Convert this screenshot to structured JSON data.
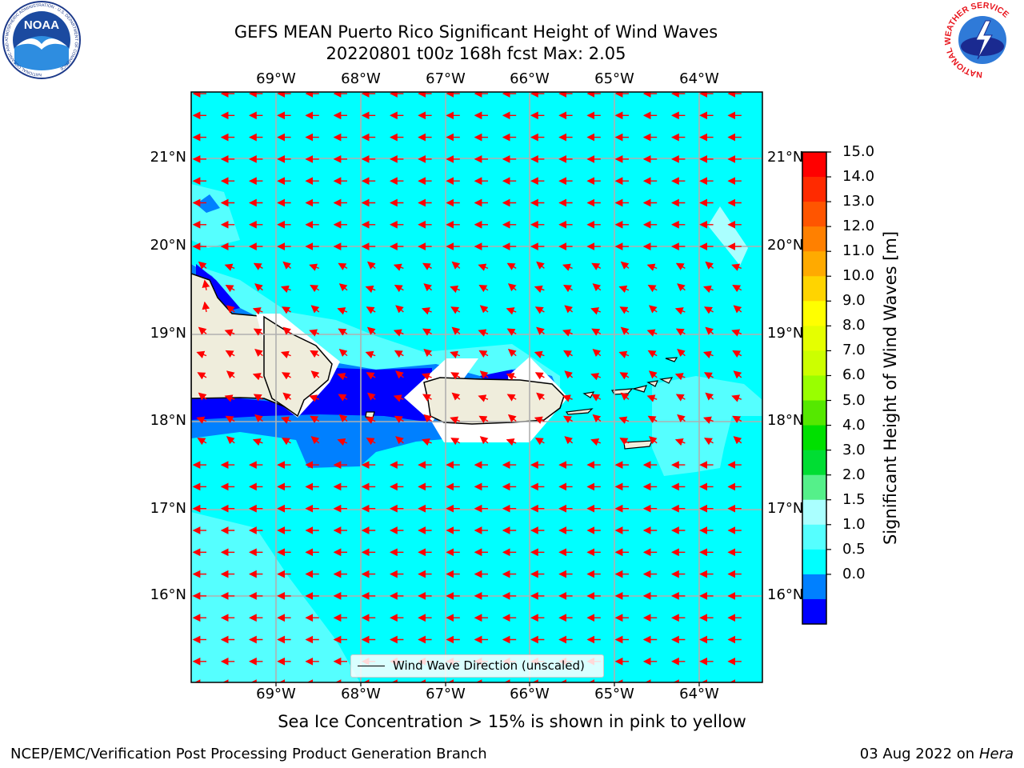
{
  "title_line1": "GEFS MEAN Puerto Rico Significant Height of Wind Waves",
  "title_line2": "20220801 t00z 168h fcst   Max: 2.05",
  "lon_labels": [
    "69°W",
    "68°W",
    "67°W",
    "66°W",
    "65°W",
    "64°W"
  ],
  "lat_labels": [
    "21°N",
    "20°N",
    "19°N",
    "18°N",
    "17°N",
    "16°N"
  ],
  "legend_text": "Wind Wave Direction (unscaled)",
  "colorbar": {
    "title": "Significant Height of Wind Waves [m]",
    "ticks": [
      "15.0",
      "14.0",
      "13.0",
      "12.0",
      "11.0",
      "10.0",
      "9.0",
      "8.0",
      "7.0",
      "6.0",
      "5.0",
      "4.0",
      "3.0",
      "2.0",
      "1.5",
      "1.0",
      "0.5",
      "0.0"
    ],
    "colors": [
      "#ff0000",
      "#ff2a00",
      "#ff5500",
      "#ff8000",
      "#ffaa00",
      "#ffd400",
      "#ffff00",
      "#e5ff00",
      "#ccff00",
      "#99ff00",
      "#55e800",
      "#00e000",
      "#00dd33",
      "#55f08a",
      "#aaffff",
      "#55ffff",
      "#00ffff",
      "#0080ff",
      "#0000ff"
    ]
  },
  "colors": {
    "sea_base": "#00ffff",
    "sea_mid": "#55ffff",
    "sea_light": "#aaffff",
    "shallow": "#0080ff",
    "deep": "#0000ff",
    "land": "#efeddc",
    "arrow": "#ff0000"
  },
  "ice_note": "Sea Ice Concentration > 15% is shown in pink to yellow",
  "footer_left": "NCEP/EMC/Verification Post Processing Product Generation Branch",
  "footer_right_date": "03 Aug 2022 on",
  "footer_right_host": "Hera",
  "logos": {
    "noaa": "NOAA",
    "noaa_ring": "NATIONAL OCEANIC AND ATMOSPHERIC ADMINISTRATION · U.S. DEPARTMENT OF COMMERCE",
    "nws_ring": "NATIONAL WEATHER SERVICE"
  }
}
